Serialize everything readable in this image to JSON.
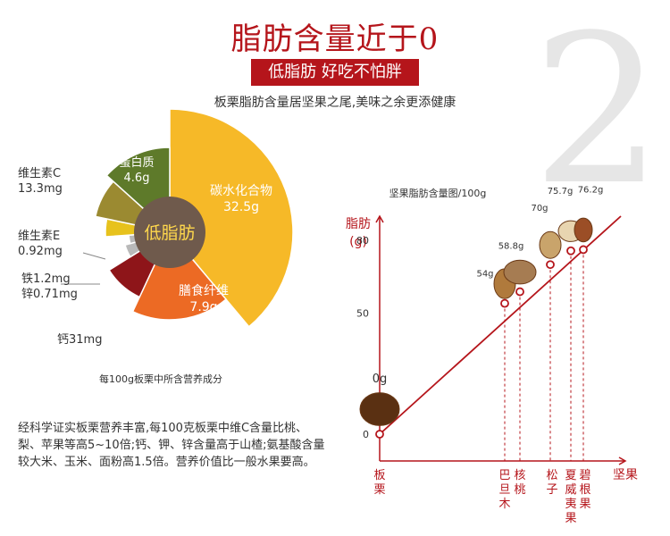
{
  "header": {
    "title": "脂肪含量近于0",
    "subtitle": "低脂肪 好吃不怕胖",
    "tagline": "板栗脂肪含量居坚果之尾,美味之余更添健康",
    "big_number": "2"
  },
  "description": "经科学证实板栗营养丰富,每100克板栗中维C含量比桃、梨、苹果等高5~10倍;钙、钾、锌含量高于山楂;氨基酸含量较大米、玉米、面粉高1.5倍。营养价值比一般水果要高。",
  "chart_data": [
    {
      "type": "pie",
      "title": "每100g板栗中所含营养成分",
      "center_label": "低脂肪",
      "slices": [
        {
          "name": "碳水化合物",
          "value": "32.5g",
          "color": "#f6b928"
        },
        {
          "name": "膳食纤维",
          "value": "7.9g",
          "color": "#ec6a24"
        },
        {
          "name": "钙",
          "value": "31mg",
          "color": "#8e1519"
        },
        {
          "name": "铁",
          "value": "1.2mg",
          "color": "#b9b9b9"
        },
        {
          "name": "锌",
          "value": "0.71mg",
          "color": "#b9b9b9"
        },
        {
          "name": "维生素E",
          "value": "0.92mg",
          "color": "#e7c21d"
        },
        {
          "name": "维生素C",
          "value": "13.3mg",
          "color": "#9b8a31"
        },
        {
          "name": "蛋白质",
          "value": "4.6g",
          "color": "#5e7a2a"
        }
      ],
      "outer_labels": [
        {
          "text": "维生素C",
          "sub": "13.3mg"
        },
        {
          "text": "维生素E",
          "sub": "0.92mg"
        },
        {
          "text": "铁1.2mg",
          "sub": "锌0.71mg"
        },
        {
          "text": "钙31mg",
          "sub": ""
        }
      ]
    },
    {
      "type": "line",
      "title": "坚果脂肪含量图/100g",
      "ylabel": [
        "脂肪",
        "(g)"
      ],
      "xlabel": "坚果",
      "yticks": [
        0,
        50,
        80
      ],
      "ylim": [
        0,
        90
      ],
      "points": [
        {
          "name": "板栗",
          "y": 0,
          "label": "0g"
        },
        {
          "name": "巴旦木",
          "y": 54,
          "label": "54g"
        },
        {
          "name": "核桃",
          "y": 58.8,
          "label": "58.8g"
        },
        {
          "name": "松子",
          "y": 70,
          "label": "70g"
        },
        {
          "name": "夏威夷果",
          "y": 75.7,
          "label": "75.7g"
        },
        {
          "name": "碧根果",
          "y": 76.2,
          "label": "76.2g"
        }
      ],
      "colors": {
        "axis": "#b5151b",
        "nut_fill": "#8b5a2b"
      }
    }
  ]
}
